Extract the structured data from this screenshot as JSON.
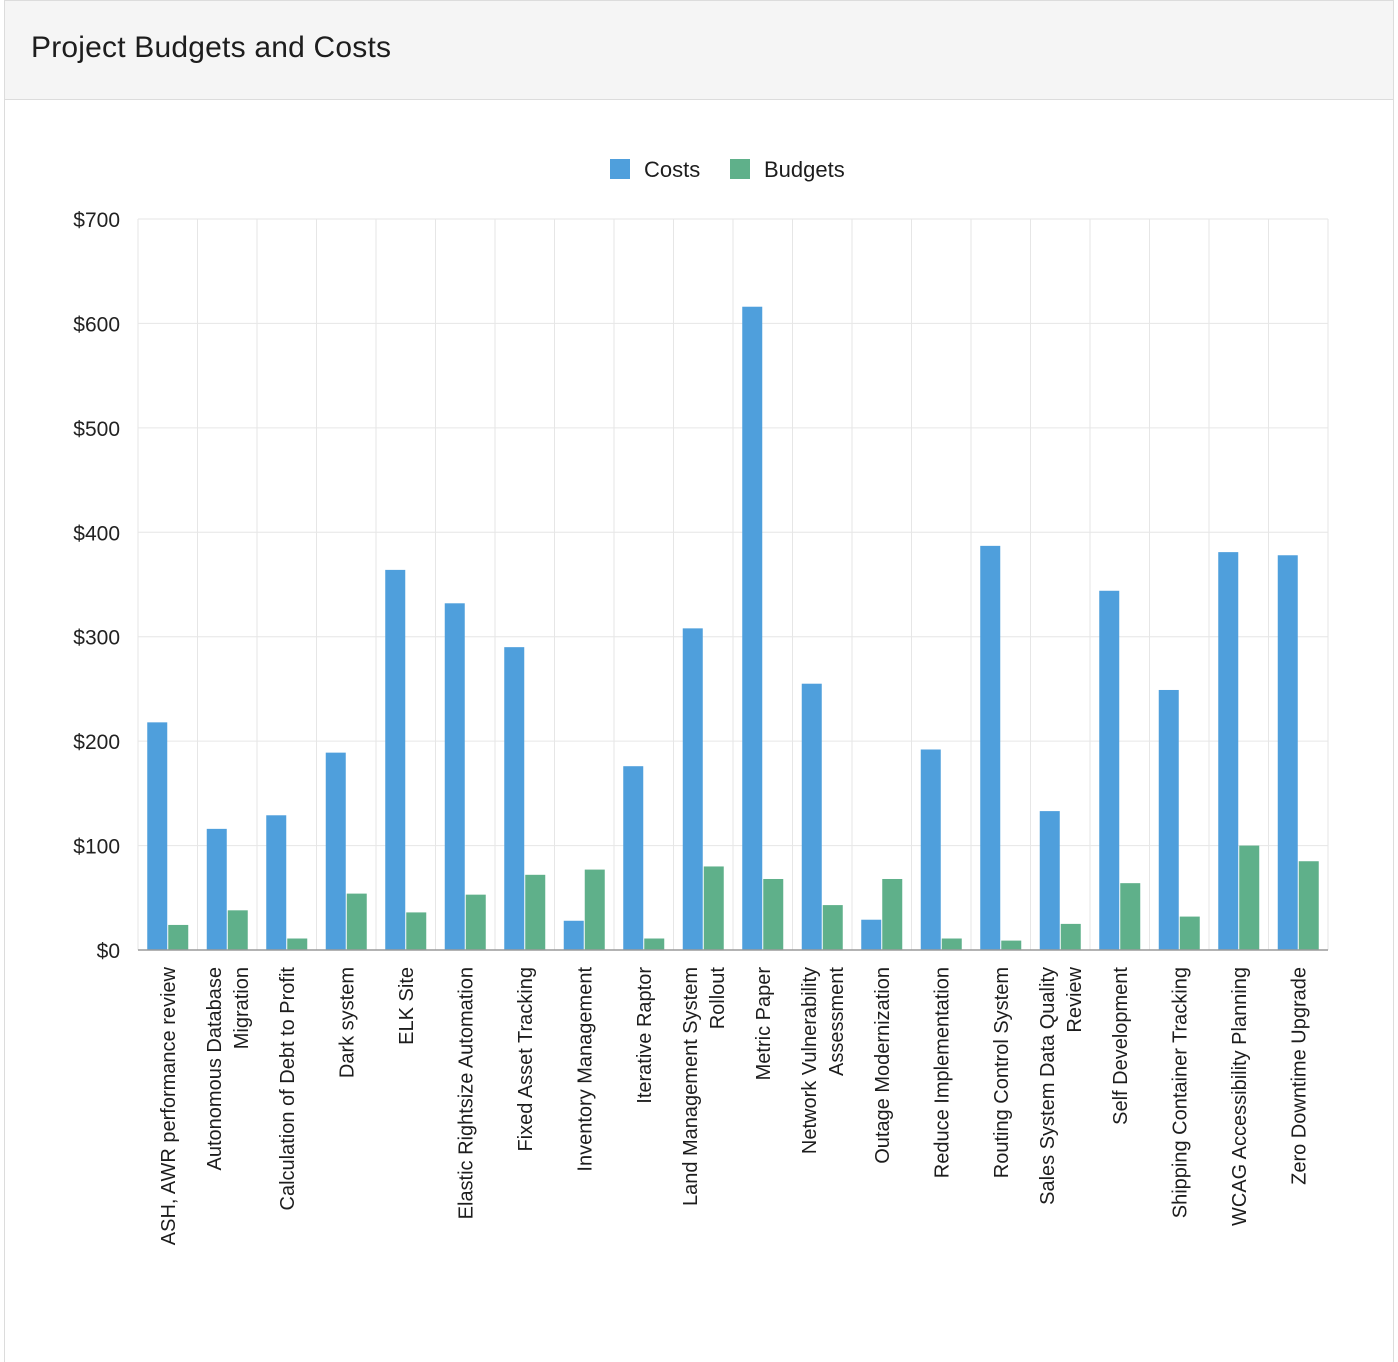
{
  "region": {
    "title": "Project Budgets and Costs"
  },
  "chart_data": {
    "type": "bar",
    "title": "",
    "xlabel": "",
    "ylabel": "",
    "ylim": [
      0,
      700
    ],
    "yticks": [
      0,
      100,
      200,
      300,
      400,
      500,
      600,
      700
    ],
    "y_tick_format": "$",
    "grid": true,
    "legend_position": "top-center",
    "categories": [
      [
        "ASH, AWR performance review"
      ],
      [
        "Autonomous Database",
        "Migration"
      ],
      [
        "Calculation of Debt to Profit"
      ],
      [
        "Dark system"
      ],
      [
        "ELK Site"
      ],
      [
        "Elastic Rightsize Automation"
      ],
      [
        "Fixed Asset Tracking"
      ],
      [
        "Inventory Management"
      ],
      [
        "Iterative Raptor"
      ],
      [
        "Land Management System",
        "Rollout"
      ],
      [
        "Metric Paper"
      ],
      [
        "Network Vulnerability",
        "Assessment"
      ],
      [
        "Outage Modernization"
      ],
      [
        "Reduce Implementation"
      ],
      [
        "Routing Control System"
      ],
      [
        "Sales System Data Quality",
        "Review"
      ],
      [
        "Self Development"
      ],
      [
        "Shipping Container Tracking"
      ],
      [
        "WCAG Accessibility Planning"
      ],
      [
        "Zero Downtime Upgrade"
      ]
    ],
    "series": [
      {
        "name": "Costs",
        "color": "#4f9fdc",
        "values": [
          218,
          116,
          129,
          189,
          364,
          332,
          290,
          28,
          176,
          308,
          616,
          255,
          29,
          192,
          387,
          133,
          344,
          249,
          381,
          378
        ]
      },
      {
        "name": "Budgets",
        "color": "#5fb08a",
        "values": [
          24,
          38,
          11,
          54,
          36,
          53,
          72,
          77,
          11,
          80,
          68,
          43,
          68,
          11,
          9,
          25,
          64,
          32,
          100,
          85
        ]
      }
    ]
  }
}
